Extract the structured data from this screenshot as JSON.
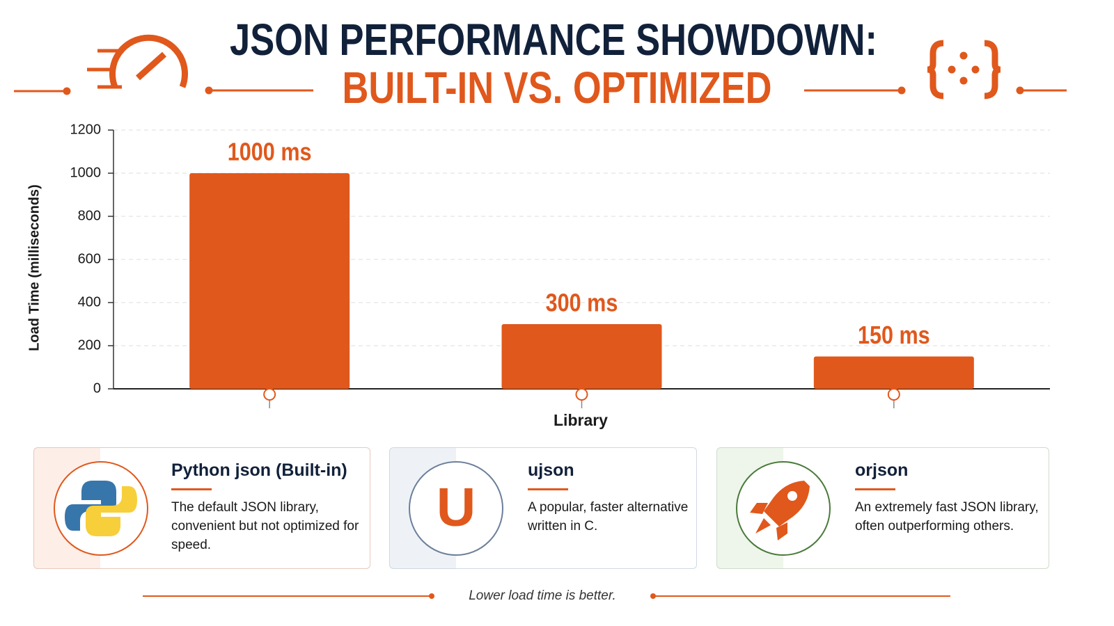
{
  "chart_data": {
    "type": "bar",
    "title": "JSON PERFORMANCE SHOWDOWN:",
    "subtitle": "BUILT-IN VS. OPTIMIZED",
    "ylabel": "Load Time (milliseconds)",
    "xlabel": "Library",
    "categories": [
      "Python json (Built-in)",
      "ujson",
      "orjson"
    ],
    "values": [
      1000,
      300,
      150
    ],
    "value_labels": [
      "1000 ms",
      "300 ms",
      "150 ms"
    ],
    "color": "#e0581c",
    "ylim": [
      0,
      1200
    ],
    "yticks": [
      0,
      200,
      400,
      600,
      800,
      1000,
      1200
    ],
    "grid": true
  },
  "cards": [
    {
      "description": "The default JSON library, convenient but not optimized for speed."
    },
    {
      "icon": "U",
      "description": "A popular, faster alternative written in C."
    },
    {
      "description": "An extremely fast JSON library, often outperforming others."
    }
  ],
  "footer": "Lower load time is better."
}
